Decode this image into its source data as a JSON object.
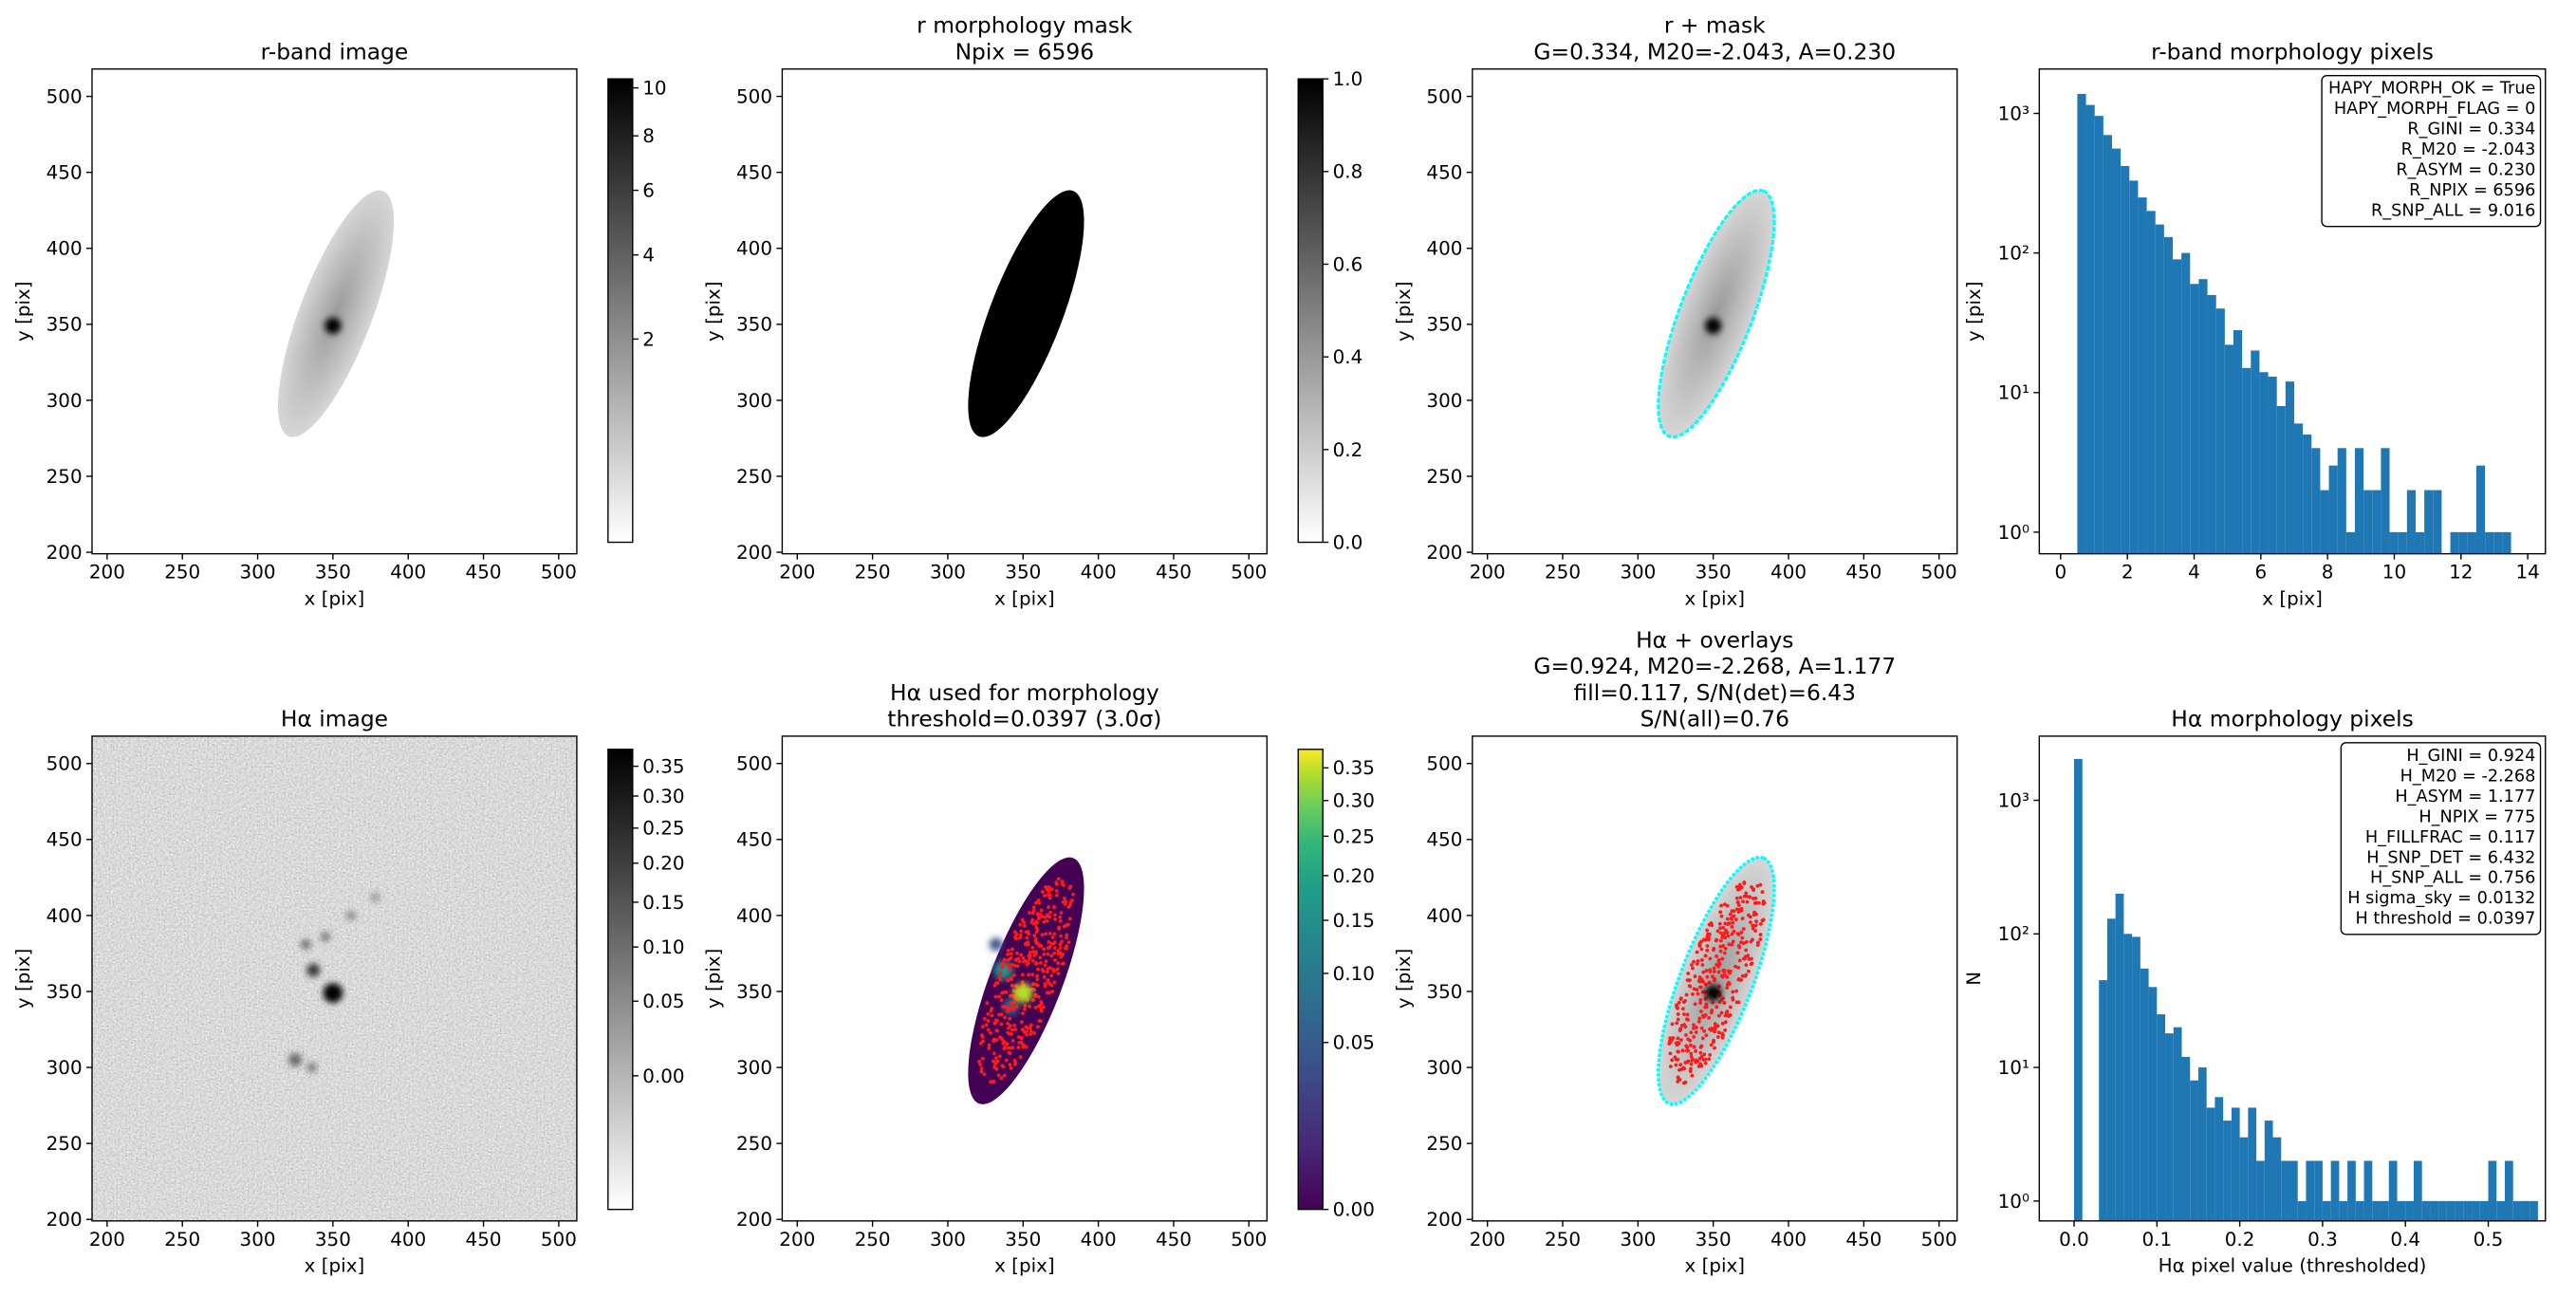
{
  "chart_data": [
    {
      "type": "image",
      "title": [
        "r-band image"
      ],
      "xlabel": "x [pix]",
      "ylabel": "y [pix]",
      "xlim": [
        190,
        512
      ],
      "ylim": [
        199,
        518
      ],
      "xticks": [
        200,
        250,
        300,
        350,
        400,
        450,
        500
      ],
      "yticks": [
        200,
        250,
        300,
        350,
        400,
        450,
        500
      ],
      "colorbar": {
        "colormap": "gray_r",
        "scale": "sqrt",
        "lim": [
          0,
          10.4
        ],
        "ticks": [
          2,
          4,
          6,
          8,
          10
        ]
      }
    },
    {
      "type": "image",
      "title": [
        "r morphology mask",
        "Npix = 6596"
      ],
      "xlabel": "x [pix]",
      "ylabel": "y [pix]",
      "xlim": [
        190,
        512
      ],
      "ylim": [
        199,
        518
      ],
      "xticks": [
        200,
        250,
        300,
        350,
        400,
        450,
        500
      ],
      "yticks": [
        200,
        250,
        300,
        350,
        400,
        450,
        500
      ],
      "colorbar": {
        "colormap": "gray_r",
        "scale": "linear",
        "lim": [
          0,
          1
        ],
        "ticks": [
          {
            "value": 0,
            "label": "0.0"
          },
          0.2,
          0.4,
          0.6,
          0.8,
          {
            "value": 1,
            "label": "1.0"
          }
        ]
      }
    },
    {
      "type": "image",
      "title": [
        "r + mask",
        "G=0.334, M20=-2.043, A=0.230"
      ],
      "xlabel": "x [pix]",
      "ylabel": "y [pix]",
      "xlim": [
        190,
        512
      ],
      "ylim": [
        199,
        518
      ],
      "xticks": [
        200,
        250,
        300,
        350,
        400,
        450,
        500
      ],
      "yticks": [
        200,
        250,
        300,
        350,
        400,
        450,
        500
      ]
    },
    {
      "type": "histogram",
      "title": [
        "r-band morphology pixels"
      ],
      "xlabel": "x [pix]",
      "ylabel": "y [pix]",
      "color": "#1f77b4",
      "yscale": "log",
      "xlim": [
        -0.64,
        14.53
      ],
      "ylim": [
        0.7,
        2080
      ],
      "xticks": [
        0,
        2,
        4,
        6,
        8,
        10,
        12,
        14
      ],
      "yticks": [
        {
          "value": 1,
          "label": "10⁰"
        },
        {
          "value": 10,
          "label": "10¹"
        },
        {
          "value": 100,
          "label": "10²"
        },
        {
          "value": 1000,
          "label": "10³"
        }
      ],
      "bins": [
        0.5,
        0.76,
        1.02,
        1.28,
        1.54,
        1.8,
        2.06,
        2.32,
        2.58,
        2.84,
        3.1,
        3.36,
        3.62,
        3.88,
        4.14,
        4.4,
        4.66,
        4.92,
        5.18,
        5.44,
        5.7,
        5.96,
        6.22,
        6.48,
        6.74,
        7.0,
        7.26,
        7.52,
        7.78,
        8.04,
        8.3,
        8.56,
        8.82,
        9.08,
        9.34,
        9.6,
        9.86,
        10.12,
        10.38,
        10.64,
        10.9,
        11.16,
        11.42,
        11.68,
        11.94,
        12.2,
        12.46,
        12.72,
        12.98,
        13.24,
        13.5
      ],
      "counts": [
        1380,
        1150,
        960,
        700,
        560,
        420,
        330,
        250,
        200,
        160,
        130,
        90,
        100,
        60,
        65,
        50,
        40,
        22,
        28,
        15,
        20,
        14,
        13,
        8,
        12,
        6,
        5,
        4,
        2,
        3,
        4,
        1,
        4,
        2,
        2,
        4,
        1,
        1,
        2,
        1,
        2,
        2,
        0,
        1,
        1,
        1,
        3,
        1,
        1,
        1
      ],
      "annotation": [
        "HAPY_MORPH_OK = True",
        "HAPY_MORPH_FLAG = 0",
        "R_GINI = 0.334",
        "R_M20 = -2.043",
        "R_ASYM = 0.230",
        "R_NPIX = 6596",
        "R_SNP_ALL = 9.016"
      ]
    },
    {
      "type": "image",
      "title": [
        "Hα image"
      ],
      "xlabel": "x [pix]",
      "ylabel": "y [pix]",
      "xlim": [
        190,
        512
      ],
      "ylim": [
        199,
        518
      ],
      "xticks": [
        200,
        250,
        300,
        350,
        400,
        450,
        500
      ],
      "yticks": [
        200,
        250,
        300,
        350,
        400,
        450,
        500
      ],
      "colorbar": {
        "colormap": "gray_r",
        "scale": "sqrt",
        "lim": [
          -0.035,
          0.38
        ],
        "ticks": [
          {
            "value": 0,
            "label": "0.00"
          },
          0.05,
          {
            "value": 0.1,
            "label": "0.10"
          },
          0.15,
          {
            "value": 0.2,
            "label": "0.20"
          },
          0.25,
          {
            "value": 0.3,
            "label": "0.30"
          },
          0.35
        ]
      }
    },
    {
      "type": "image",
      "title": [
        "Hα used for morphology",
        "threshold=0.0397 (3.0σ)"
      ],
      "xlabel": "x [pix]",
      "ylabel": "y [pix]",
      "xlim": [
        190,
        512
      ],
      "ylim": [
        199,
        518
      ],
      "xticks": [
        200,
        250,
        300,
        350,
        400,
        450,
        500
      ],
      "yticks": [
        200,
        250,
        300,
        350,
        400,
        450,
        500
      ],
      "colorbar": {
        "colormap": "viridis",
        "scale": "sqrt",
        "lim": [
          0,
          0.38
        ],
        "ticks": [
          {
            "value": 0,
            "label": "0.00"
          },
          0.05,
          {
            "value": 0.1,
            "label": "0.10"
          },
          0.15,
          {
            "value": 0.2,
            "label": "0.20"
          },
          0.25,
          {
            "value": 0.3,
            "label": "0.30"
          },
          0.35
        ]
      }
    },
    {
      "type": "image",
      "title": [
        "Hα + overlays",
        "G=0.924, M20=-2.268, A=1.177",
        "fill=0.117, S/N(det)=6.43",
        "S/N(all)=0.76"
      ],
      "xlabel": "x [pix]",
      "ylabel": "y [pix]",
      "xlim": [
        190,
        512
      ],
      "ylim": [
        199,
        518
      ],
      "xticks": [
        200,
        250,
        300,
        350,
        400,
        450,
        500
      ],
      "yticks": [
        200,
        250,
        300,
        350,
        400,
        450,
        500
      ]
    },
    {
      "type": "histogram",
      "title": [
        "Hα morphology pixels"
      ],
      "xlabel": "Hα pixel value (thresholded)",
      "ylabel": "N",
      "color": "#1f77b4",
      "yscale": "log",
      "xlim": [
        -0.042,
        0.569
      ],
      "ylim": [
        0.71,
        3020
      ],
      "xticks": [
        {
          "value": 0,
          "label": "0.0"
        },
        0.1,
        0.2,
        0.3,
        0.4,
        0.5
      ],
      "yticks": [
        {
          "value": 1,
          "label": "10⁰"
        },
        {
          "value": 10,
          "label": "10¹"
        },
        {
          "value": 100,
          "label": "10²"
        },
        {
          "value": 1000,
          "label": "10³"
        }
      ],
      "bins": [
        0,
        0.01,
        0.02,
        0.03,
        0.04,
        0.05,
        0.06,
        0.07,
        0.08,
        0.09,
        0.1,
        0.11,
        0.12,
        0.13,
        0.14,
        0.15,
        0.16,
        0.17,
        0.18,
        0.19,
        0.2,
        0.21,
        0.22,
        0.23,
        0.24,
        0.25,
        0.26,
        0.27,
        0.28,
        0.29,
        0.3,
        0.31,
        0.32,
        0.33,
        0.34,
        0.35,
        0.36,
        0.37,
        0.38,
        0.39,
        0.4,
        0.41,
        0.42,
        0.43,
        0.44,
        0.45,
        0.46,
        0.47,
        0.48,
        0.49,
        0.5,
        0.51,
        0.52,
        0.53,
        0.54,
        0.55,
        0.56
      ],
      "counts": [
        2040,
        0,
        0,
        45,
        130,
        200,
        100,
        95,
        55,
        40,
        25,
        18,
        20,
        12,
        8,
        10,
        5,
        6,
        4,
        5,
        3,
        5,
        2,
        4,
        3,
        2,
        2,
        1,
        2,
        2,
        1,
        2,
        1,
        2,
        1,
        2,
        1,
        1,
        2,
        1,
        1,
        2,
        1,
        1,
        1,
        1,
        1,
        1,
        1,
        1,
        2,
        1,
        2,
        1,
        1,
        1
      ],
      "annotation": [
        "H_GINI = 0.924",
        "H_M20 = -2.268",
        "H_ASYM = 1.177",
        "H_NPIX = 775",
        "H_FILLFRAC = 0.117",
        "H_SNP_DET = 6.432",
        "H_SNP_ALL = 0.756",
        "H sigma_sky = 0.0132",
        "H threshold = 0.0397"
      ]
    }
  ]
}
